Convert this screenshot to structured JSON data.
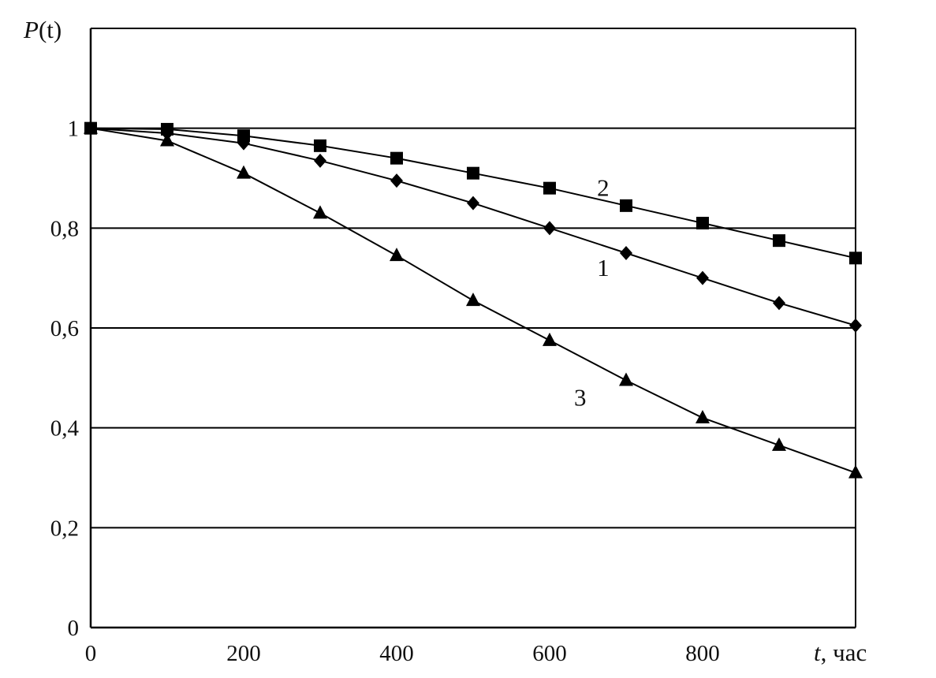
{
  "chart_data": {
    "type": "line",
    "ylabel_main": "P",
    "ylabel_arg": "(t)",
    "xlabel_var": "t",
    "xlabel_unit": ", час",
    "x_ticks": [
      "0",
      "200",
      "400",
      "600",
      "800"
    ],
    "y_ticks": [
      "0",
      "0,2",
      "0,4",
      "0,6",
      "0,8",
      "1"
    ],
    "xlim": [
      0,
      1000
    ],
    "ylim": [
      0,
      1.2
    ],
    "grid": "horizontal",
    "x": [
      0,
      100,
      200,
      300,
      400,
      500,
      600,
      700,
      800,
      900,
      1000
    ],
    "series": [
      {
        "name": "1",
        "marker": "diamond",
        "values": [
          1.0,
          0.99,
          0.97,
          0.935,
          0.895,
          0.85,
          0.8,
          0.75,
          0.7,
          0.65,
          0.605
        ]
      },
      {
        "name": "2",
        "marker": "square",
        "values": [
          1.0,
          0.998,
          0.985,
          0.965,
          0.94,
          0.91,
          0.88,
          0.845,
          0.81,
          0.775,
          0.74
        ]
      },
      {
        "name": "3",
        "marker": "triangle",
        "values": [
          1.0,
          0.975,
          0.91,
          0.83,
          0.745,
          0.655,
          0.575,
          0.495,
          0.42,
          0.365,
          0.31
        ]
      }
    ],
    "series_label_anchor": [
      {
        "name": "1",
        "x": 670,
        "y": 0.72
      },
      {
        "name": "2",
        "x": 670,
        "y": 0.88
      },
      {
        "name": "3",
        "x": 640,
        "y": 0.46
      }
    ]
  }
}
